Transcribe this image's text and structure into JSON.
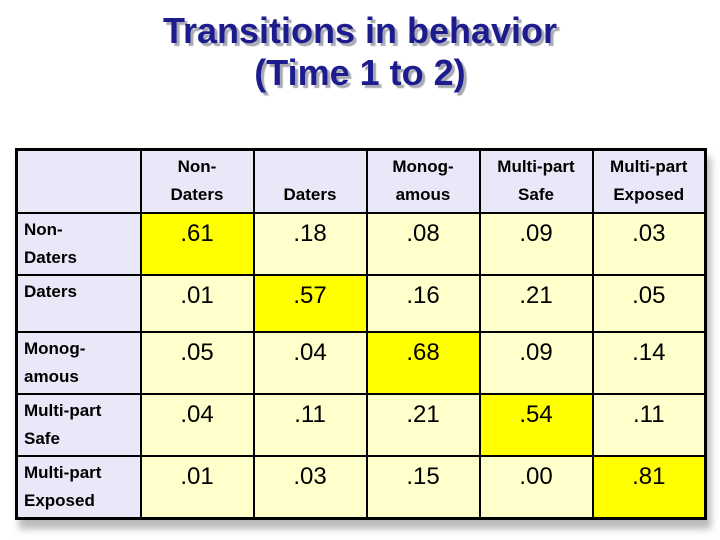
{
  "title": {
    "line1": "Transitions in behavior",
    "line2": "(Time 1 to 2)"
  },
  "table": {
    "corner_label": "",
    "column_headers": [
      "Non-\nDaters",
      "Daters",
      "Monog-\namous",
      "Multi-part\nSafe",
      "Multi-part\nExposed"
    ],
    "rows": [
      {
        "label": "Non-\nDaters",
        "values": [
          ".61",
          ".18",
          ".08",
          ".09",
          ".03"
        ],
        "highlight_index": 0
      },
      {
        "label": "Daters",
        "values": [
          ".01",
          ".57",
          ".16",
          ".21",
          ".05"
        ],
        "highlight_index": 1
      },
      {
        "label": "Monog-\namous",
        "values": [
          ".05",
          ".04",
          ".68",
          ".09",
          ".14"
        ],
        "highlight_index": 2
      },
      {
        "label": "Multi-part\nSafe",
        "values": [
          ".04",
          ".11",
          ".21",
          ".54",
          ".11"
        ],
        "highlight_index": 3
      },
      {
        "label": "Multi-part\nExposed",
        "values": [
          ".01",
          ".03",
          ".15",
          ".00",
          ".81"
        ],
        "highlight_index": 4
      }
    ],
    "colors": {
      "header_bg": "#e8e8f8",
      "cell_bg": "#ffffcc",
      "highlight_bg": "#ffff00",
      "border": "#000000",
      "title_color": "#1c1c8e"
    }
  }
}
